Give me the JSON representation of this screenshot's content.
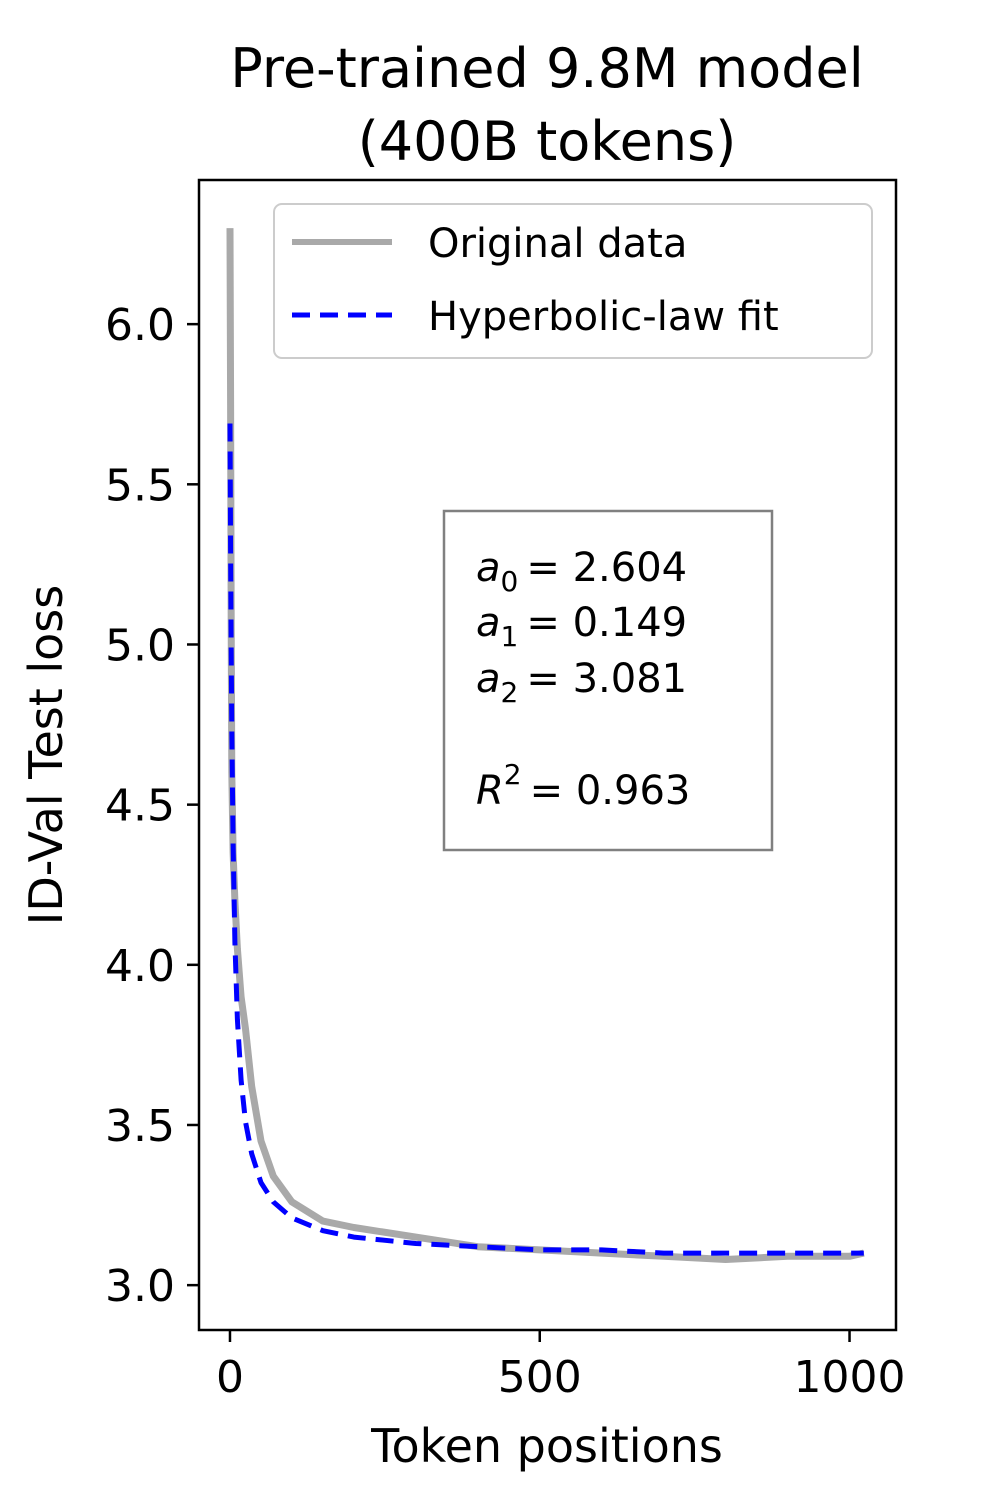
{
  "chart_data": {
    "type": "line",
    "title_lines": [
      "Pre-trained 9.8M model",
      "(400B tokens)"
    ],
    "xlabel": "Token positions",
    "ylabel": "ID-Val Test loss",
    "xlim": [
      -50,
      1075
    ],
    "ylim": [
      2.86,
      6.45
    ],
    "xticks": [
      0,
      500,
      1000
    ],
    "xtick_labels": [
      "0",
      "500",
      "1000"
    ],
    "yticks": [
      3.0,
      3.5,
      4.0,
      4.5,
      5.0,
      5.5,
      6.0
    ],
    "ytick_labels": [
      "3.0",
      "3.5",
      "4.0",
      "4.5",
      "5.0",
      "5.5",
      "6.0"
    ],
    "grid": false,
    "legend_position": "top-right",
    "series": [
      {
        "name": "Original data",
        "style": "solid",
        "color": "#a9a9a9",
        "x": [
          0,
          1,
          2,
          3,
          5,
          8,
          12,
          18,
          25,
          35,
          50,
          70,
          100,
          150,
          200,
          300,
          400,
          500,
          600,
          700,
          800,
          900,
          1000,
          1023
        ],
        "y": [
          6.3,
          5.75,
          5.05,
          4.6,
          4.35,
          4.2,
          4.05,
          3.9,
          3.8,
          3.62,
          3.45,
          3.34,
          3.26,
          3.2,
          3.18,
          3.15,
          3.12,
          3.11,
          3.1,
          3.09,
          3.08,
          3.09,
          3.09,
          3.1
        ]
      },
      {
        "name": "Hyperbolic-law fit",
        "style": "dashed",
        "color": "#0000ff",
        "x": [
          0,
          1,
          2,
          3,
          5,
          8,
          12,
          18,
          25,
          35,
          50,
          70,
          100,
          150,
          200,
          300,
          400,
          500,
          600,
          700,
          800,
          900,
          1000,
          1023
        ],
        "y": [
          5.69,
          5.29,
          4.98,
          4.73,
          4.38,
          4.07,
          3.83,
          3.64,
          3.51,
          3.41,
          3.32,
          3.26,
          3.21,
          3.17,
          3.15,
          3.13,
          3.12,
          3.11,
          3.11,
          3.1,
          3.1,
          3.1,
          3.1,
          3.1
        ]
      }
    ],
    "annotation": {
      "a0": {
        "symbol": "a",
        "sub": "0",
        "value": "= 2.604"
      },
      "a1": {
        "symbol": "a",
        "sub": "1",
        "value": "= 0.149"
      },
      "a2": {
        "symbol": "a",
        "sub": "2",
        "value": "= 3.081"
      },
      "r2": {
        "symbol": "R",
        "sup": "2",
        "value": "= 0.963"
      }
    }
  }
}
